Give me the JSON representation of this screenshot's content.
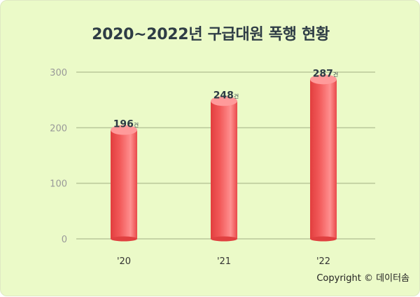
{
  "title": "2020~2022년 구급대원 폭행 현황",
  "source": "Copyright © 데이터솜",
  "chart_data": {
    "type": "bar",
    "title": "2020~2022년 구급대원 폭행 현황",
    "categories": [
      "'20",
      "'21",
      "'22"
    ],
    "values": [
      196,
      248,
      287
    ],
    "value_unit": "건",
    "yticks": [
      0,
      100,
      200,
      300
    ],
    "ylim": [
      0,
      300
    ],
    "grid": true,
    "colors": {
      "bar": "#f25a5a",
      "bar_highlight": "#ff9a9a",
      "grid": "#b9c79a",
      "tick": "#999999",
      "label": "#2e3c45"
    }
  }
}
